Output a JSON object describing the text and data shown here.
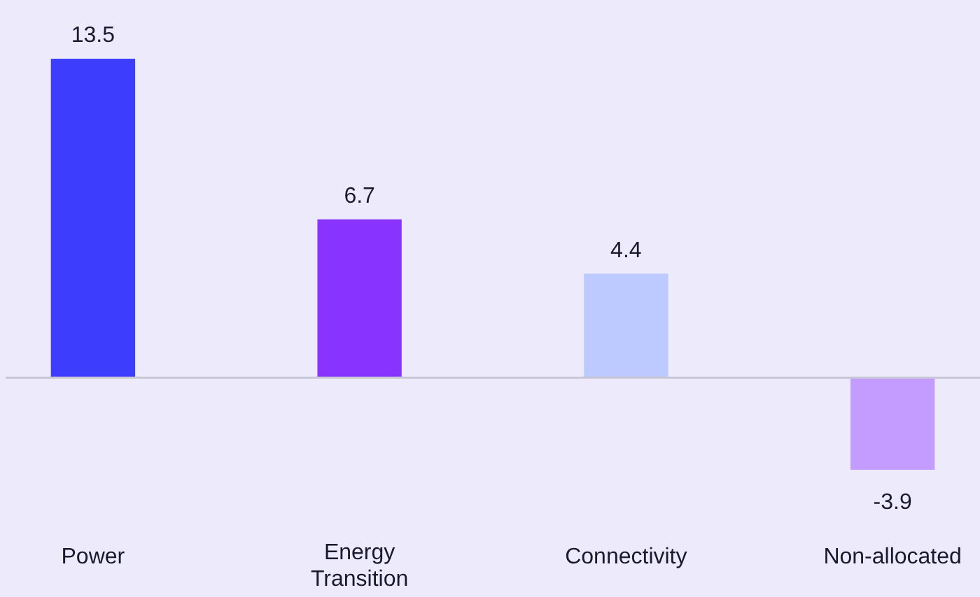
{
  "chart_data": {
    "type": "bar",
    "categories": [
      "Power",
      "Energy Transition",
      "Connectivity",
      "Non-allocated"
    ],
    "values": [
      13.5,
      6.7,
      4.4,
      -3.9
    ],
    "colors": [
      "#3d3dfd",
      "#8833ff",
      "#bccaff",
      "#c49cff"
    ],
    "data_labels": true
  }
}
